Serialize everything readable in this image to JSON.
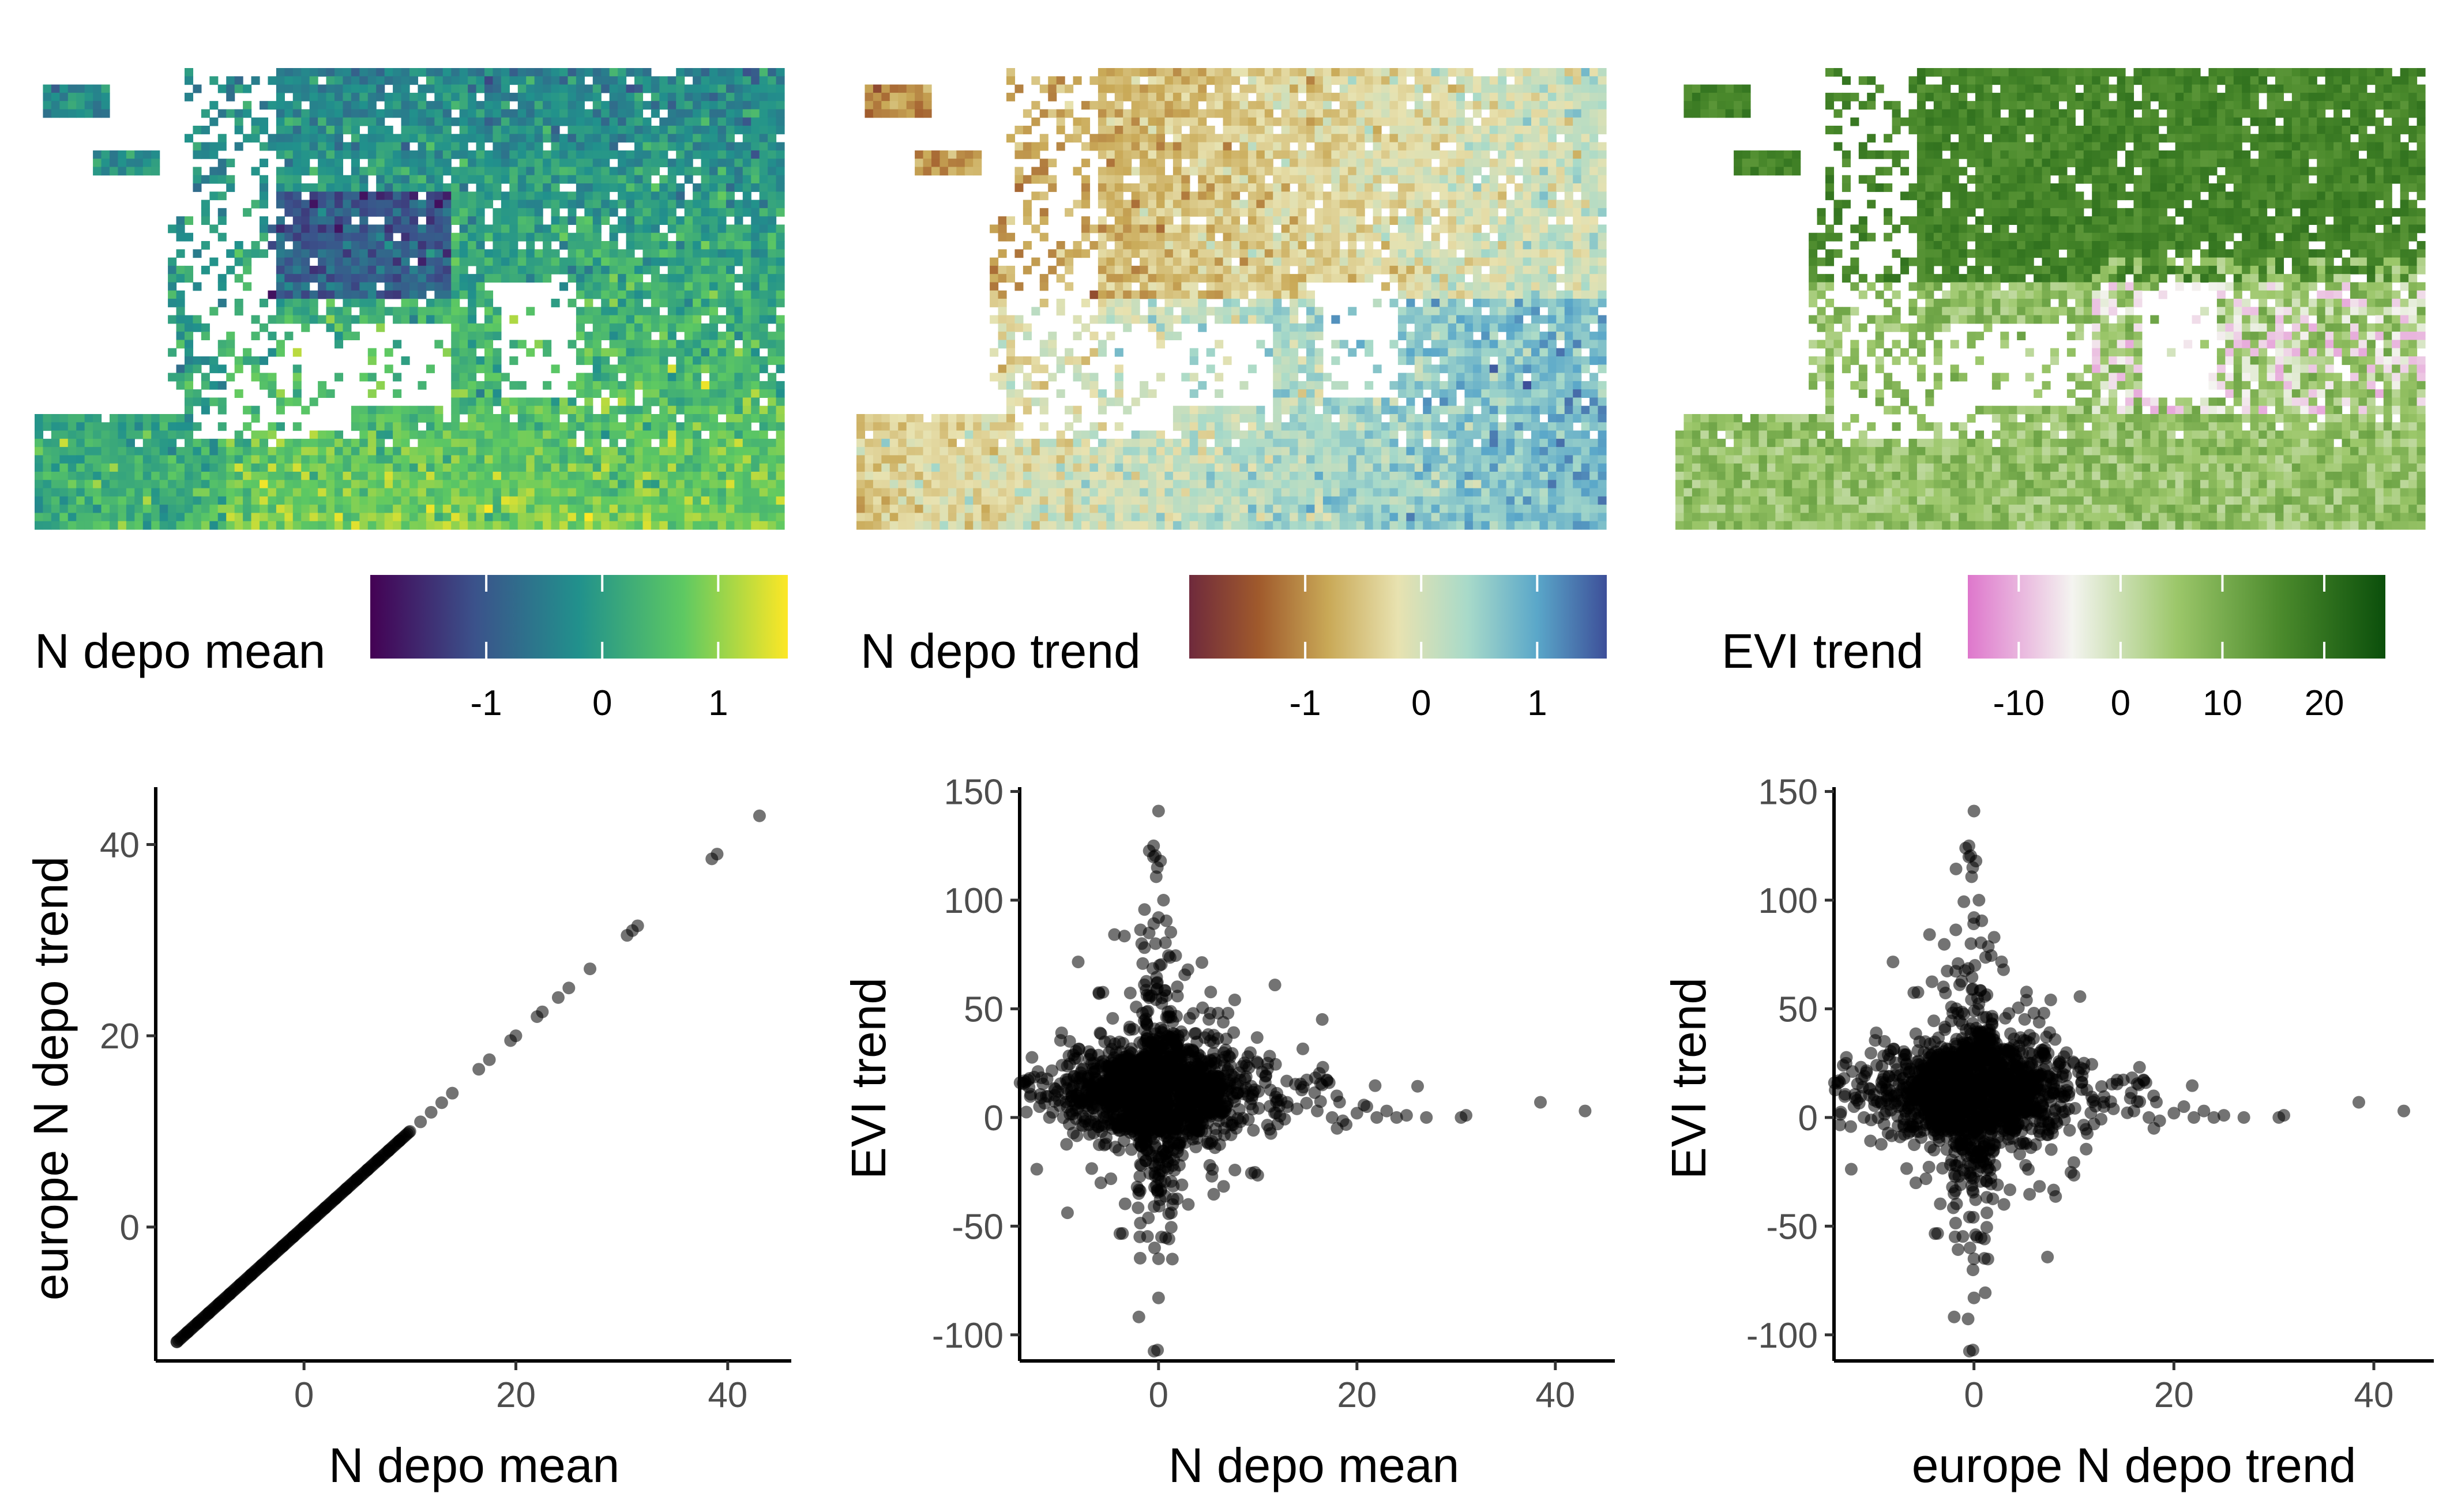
{
  "chart_data": [
    {
      "type": "heatmap",
      "panel": "map",
      "legend_title": "N depo mean",
      "legend_ticks": [
        -1,
        0,
        1
      ],
      "legend_range": [
        -2.0,
        1.6
      ],
      "palette": [
        "#440154",
        "#3b528b",
        "#21918c",
        "#5ec962",
        "#fde725"
      ]
    },
    {
      "type": "heatmap",
      "panel": "map",
      "legend_title": "N depo trend",
      "legend_ticks": [
        -1,
        0,
        1
      ],
      "legend_range": [
        -2.0,
        1.6
      ],
      "palette": [
        "#6f2a3c",
        "#a05a2c",
        "#c9a957",
        "#e8e2b0",
        "#a8dac9",
        "#5aa7c9",
        "#3d4f99"
      ]
    },
    {
      "type": "heatmap",
      "panel": "map",
      "legend_title": "EVI trend",
      "legend_ticks": [
        -10,
        0,
        10,
        20
      ],
      "legend_range": [
        -15,
        26
      ],
      "palette": [
        "#de77cc",
        "#f4f4f0",
        "#9cc76a",
        "#4b8a2c",
        "#0b4f0b"
      ]
    },
    {
      "type": "scatter",
      "xlabel": "N depo mean",
      "ylabel": "europe N depo trend",
      "xlim": [
        -14,
        46
      ],
      "ylim": [
        -14,
        46
      ],
      "xticks": [
        0,
        20,
        40
      ],
      "yticks": [
        0,
        20,
        40
      ],
      "points": [
        [
          -12,
          -12
        ],
        [
          -11,
          -11
        ],
        [
          -10,
          -10
        ],
        [
          -9,
          -9
        ],
        [
          -8,
          -8
        ],
        [
          -7,
          -7
        ],
        [
          -6,
          -6
        ],
        [
          -5,
          -5
        ],
        [
          -4,
          -4
        ],
        [
          -3,
          -3
        ],
        [
          -2,
          -2
        ],
        [
          -1,
          -1
        ],
        [
          0,
          0
        ],
        [
          1,
          1
        ],
        [
          2,
          2
        ],
        [
          3,
          3
        ],
        [
          4,
          4
        ],
        [
          5,
          5
        ],
        [
          6,
          6
        ],
        [
          7,
          7
        ],
        [
          8,
          8
        ],
        [
          9,
          9
        ],
        [
          10,
          10
        ],
        [
          11,
          11
        ],
        [
          12,
          12
        ],
        [
          13,
          13
        ],
        [
          14,
          14
        ],
        [
          16.5,
          16.5
        ],
        [
          17.5,
          17.5
        ],
        [
          19.5,
          19.5
        ],
        [
          20,
          20
        ],
        [
          22,
          22
        ],
        [
          22.5,
          22.5
        ],
        [
          24,
          24
        ],
        [
          25,
          25
        ],
        [
          27,
          27
        ],
        [
          30.5,
          30.5
        ],
        [
          31,
          31
        ],
        [
          31.5,
          31.5
        ],
        [
          38.5,
          38.5
        ],
        [
          39,
          39
        ],
        [
          43,
          43
        ]
      ]
    },
    {
      "type": "scatter",
      "xlabel": "N depo mean",
      "ylabel": "EVI trend",
      "xlim": [
        -14,
        46
      ],
      "ylim": [
        -112,
        152
      ],
      "xticks": [
        0,
        20,
        40
      ],
      "yticks": [
        -100,
        -50,
        0,
        50,
        100,
        150
      ],
      "points": [
        [
          0,
          141
        ],
        [
          -0.5,
          125
        ],
        [
          0.2,
          118
        ],
        [
          0.5,
          100
        ],
        [
          0,
          92
        ],
        [
          -0.3,
          80
        ],
        [
          0.1,
          70
        ],
        [
          0,
          -65
        ],
        [
          -0.4,
          -60
        ],
        [
          0.3,
          -55
        ],
        [
          0,
          -83
        ],
        [
          -0.1,
          -107
        ],
        [
          12,
          8
        ],
        [
          13,
          5
        ],
        [
          16,
          3
        ],
        [
          16.5,
          15
        ],
        [
          17,
          17
        ],
        [
          17.5,
          0
        ],
        [
          18,
          -5
        ],
        [
          20,
          2
        ],
        [
          21,
          5
        ],
        [
          22,
          0
        ],
        [
          23,
          3
        ],
        [
          24,
          0
        ],
        [
          25,
          1
        ],
        [
          27,
          0
        ],
        [
          30.5,
          0
        ],
        [
          31,
          1
        ],
        [
          38.5,
          7
        ],
        [
          43,
          3
        ],
        [
          -13,
          18
        ],
        [
          -12,
          5
        ],
        [
          -11,
          0
        ],
        [
          -10,
          8
        ],
        [
          -9,
          -3
        ],
        [
          9,
          28
        ],
        [
          10,
          25
        ],
        [
          11,
          25
        ],
        [
          12,
          -3
        ],
        [
          -4,
          -15
        ],
        [
          5,
          -12
        ],
        [
          6,
          48
        ],
        [
          7,
          48
        ],
        [
          3,
          -40
        ],
        [
          -2,
          -35
        ]
      ],
      "cloud": {
        "x_center": 0,
        "y_center": 12,
        "x_spread": 5.5,
        "y_spread": 30
      }
    },
    {
      "type": "scatter",
      "xlabel": "europe N depo trend",
      "ylabel": "EVI trend",
      "xlim": [
        -14,
        46
      ],
      "ylim": [
        -112,
        152
      ],
      "xticks": [
        0,
        20,
        40
      ],
      "yticks": [
        -100,
        -50,
        0,
        50,
        100,
        150
      ],
      "points": [
        [
          0,
          141
        ],
        [
          -0.5,
          125
        ],
        [
          0.2,
          118
        ],
        [
          0.5,
          100
        ],
        [
          0,
          92
        ],
        [
          -0.3,
          80
        ],
        [
          0.1,
          70
        ],
        [
          0,
          -65
        ],
        [
          -0.4,
          -60
        ],
        [
          0.3,
          -55
        ],
        [
          0,
          -83
        ],
        [
          -0.1,
          -107
        ],
        [
          12,
          8
        ],
        [
          13,
          5
        ],
        [
          16,
          3
        ],
        [
          16.5,
          15
        ],
        [
          17,
          17
        ],
        [
          17.5,
          0
        ],
        [
          18,
          -5
        ],
        [
          20,
          2
        ],
        [
          21,
          5
        ],
        [
          22,
          0
        ],
        [
          23,
          3
        ],
        [
          24,
          0
        ],
        [
          25,
          1
        ],
        [
          27,
          0
        ],
        [
          30.5,
          0
        ],
        [
          31,
          1
        ],
        [
          38.5,
          7
        ],
        [
          43,
          3
        ],
        [
          -13,
          18
        ],
        [
          -12,
          5
        ],
        [
          -11,
          0
        ],
        [
          -10,
          8
        ],
        [
          -9,
          -3
        ],
        [
          9,
          28
        ],
        [
          10,
          25
        ],
        [
          11,
          25
        ],
        [
          12,
          -3
        ],
        [
          -4,
          -15
        ],
        [
          5,
          -12
        ],
        [
          6,
          48
        ],
        [
          7,
          48
        ],
        [
          3,
          -40
        ],
        [
          -2,
          -35
        ]
      ],
      "cloud": {
        "x_center": 0,
        "y_center": 12,
        "x_spread": 5.5,
        "y_spread": 30
      }
    }
  ]
}
